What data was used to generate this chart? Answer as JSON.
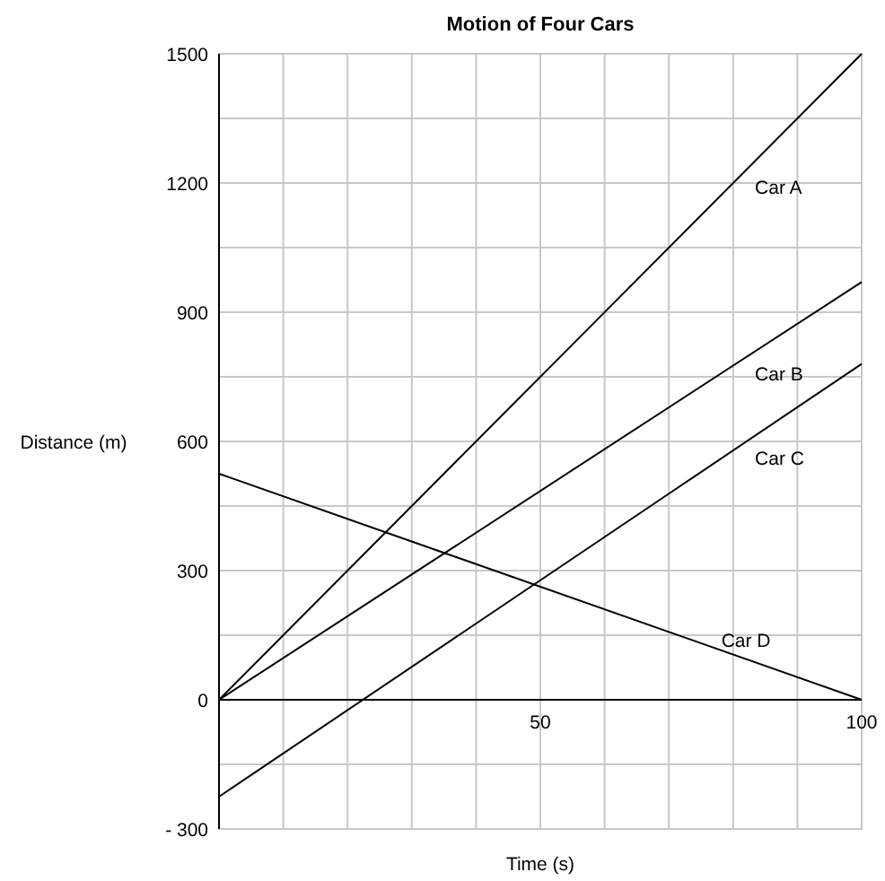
{
  "chart_data": {
    "type": "line",
    "title": "Motion of Four Cars",
    "xlabel": "Time (s)",
    "ylabel": "Distance (m)",
    "xlim": [
      0,
      100
    ],
    "ylim": [
      -300,
      1500
    ],
    "xticks": [
      {
        "value": 0,
        "label": null
      },
      {
        "value": 10,
        "label": null
      },
      {
        "value": 20,
        "label": null
      },
      {
        "value": 30,
        "label": null
      },
      {
        "value": 40,
        "label": null
      },
      50,
      {
        "value": 60,
        "label": null
      },
      {
        "value": 70,
        "label": null
      },
      {
        "value": 80,
        "label": null
      },
      {
        "value": 90,
        "label": null
      },
      100
    ],
    "yticks": [
      {
        "value": -300,
        "label": "- 300"
      },
      {
        "value": -150,
        "label": null
      },
      0,
      {
        "value": 150,
        "label": null
      },
      300,
      {
        "value": 450,
        "label": null
      },
      600,
      {
        "value": 750,
        "label": null
      },
      900,
      {
        "value": 1050,
        "label": null
      },
      1200,
      {
        "value": 1350,
        "label": null
      },
      1500
    ],
    "grid": true,
    "marker": "none",
    "line_style": "solid",
    "x": [
      0,
      100
    ],
    "series": [
      {
        "name": "Car A",
        "color": "#000000",
        "values": [
          0,
          1500
        ]
      },
      {
        "name": "Car B",
        "color": "#000000",
        "values": [
          0,
          970
        ]
      },
      {
        "name": "Car C",
        "color": "#000000",
        "values": [
          -225,
          780
        ]
      },
      {
        "name": "Car D",
        "color": "#000000",
        "values": [
          525,
          0
        ]
      }
    ]
  }
}
